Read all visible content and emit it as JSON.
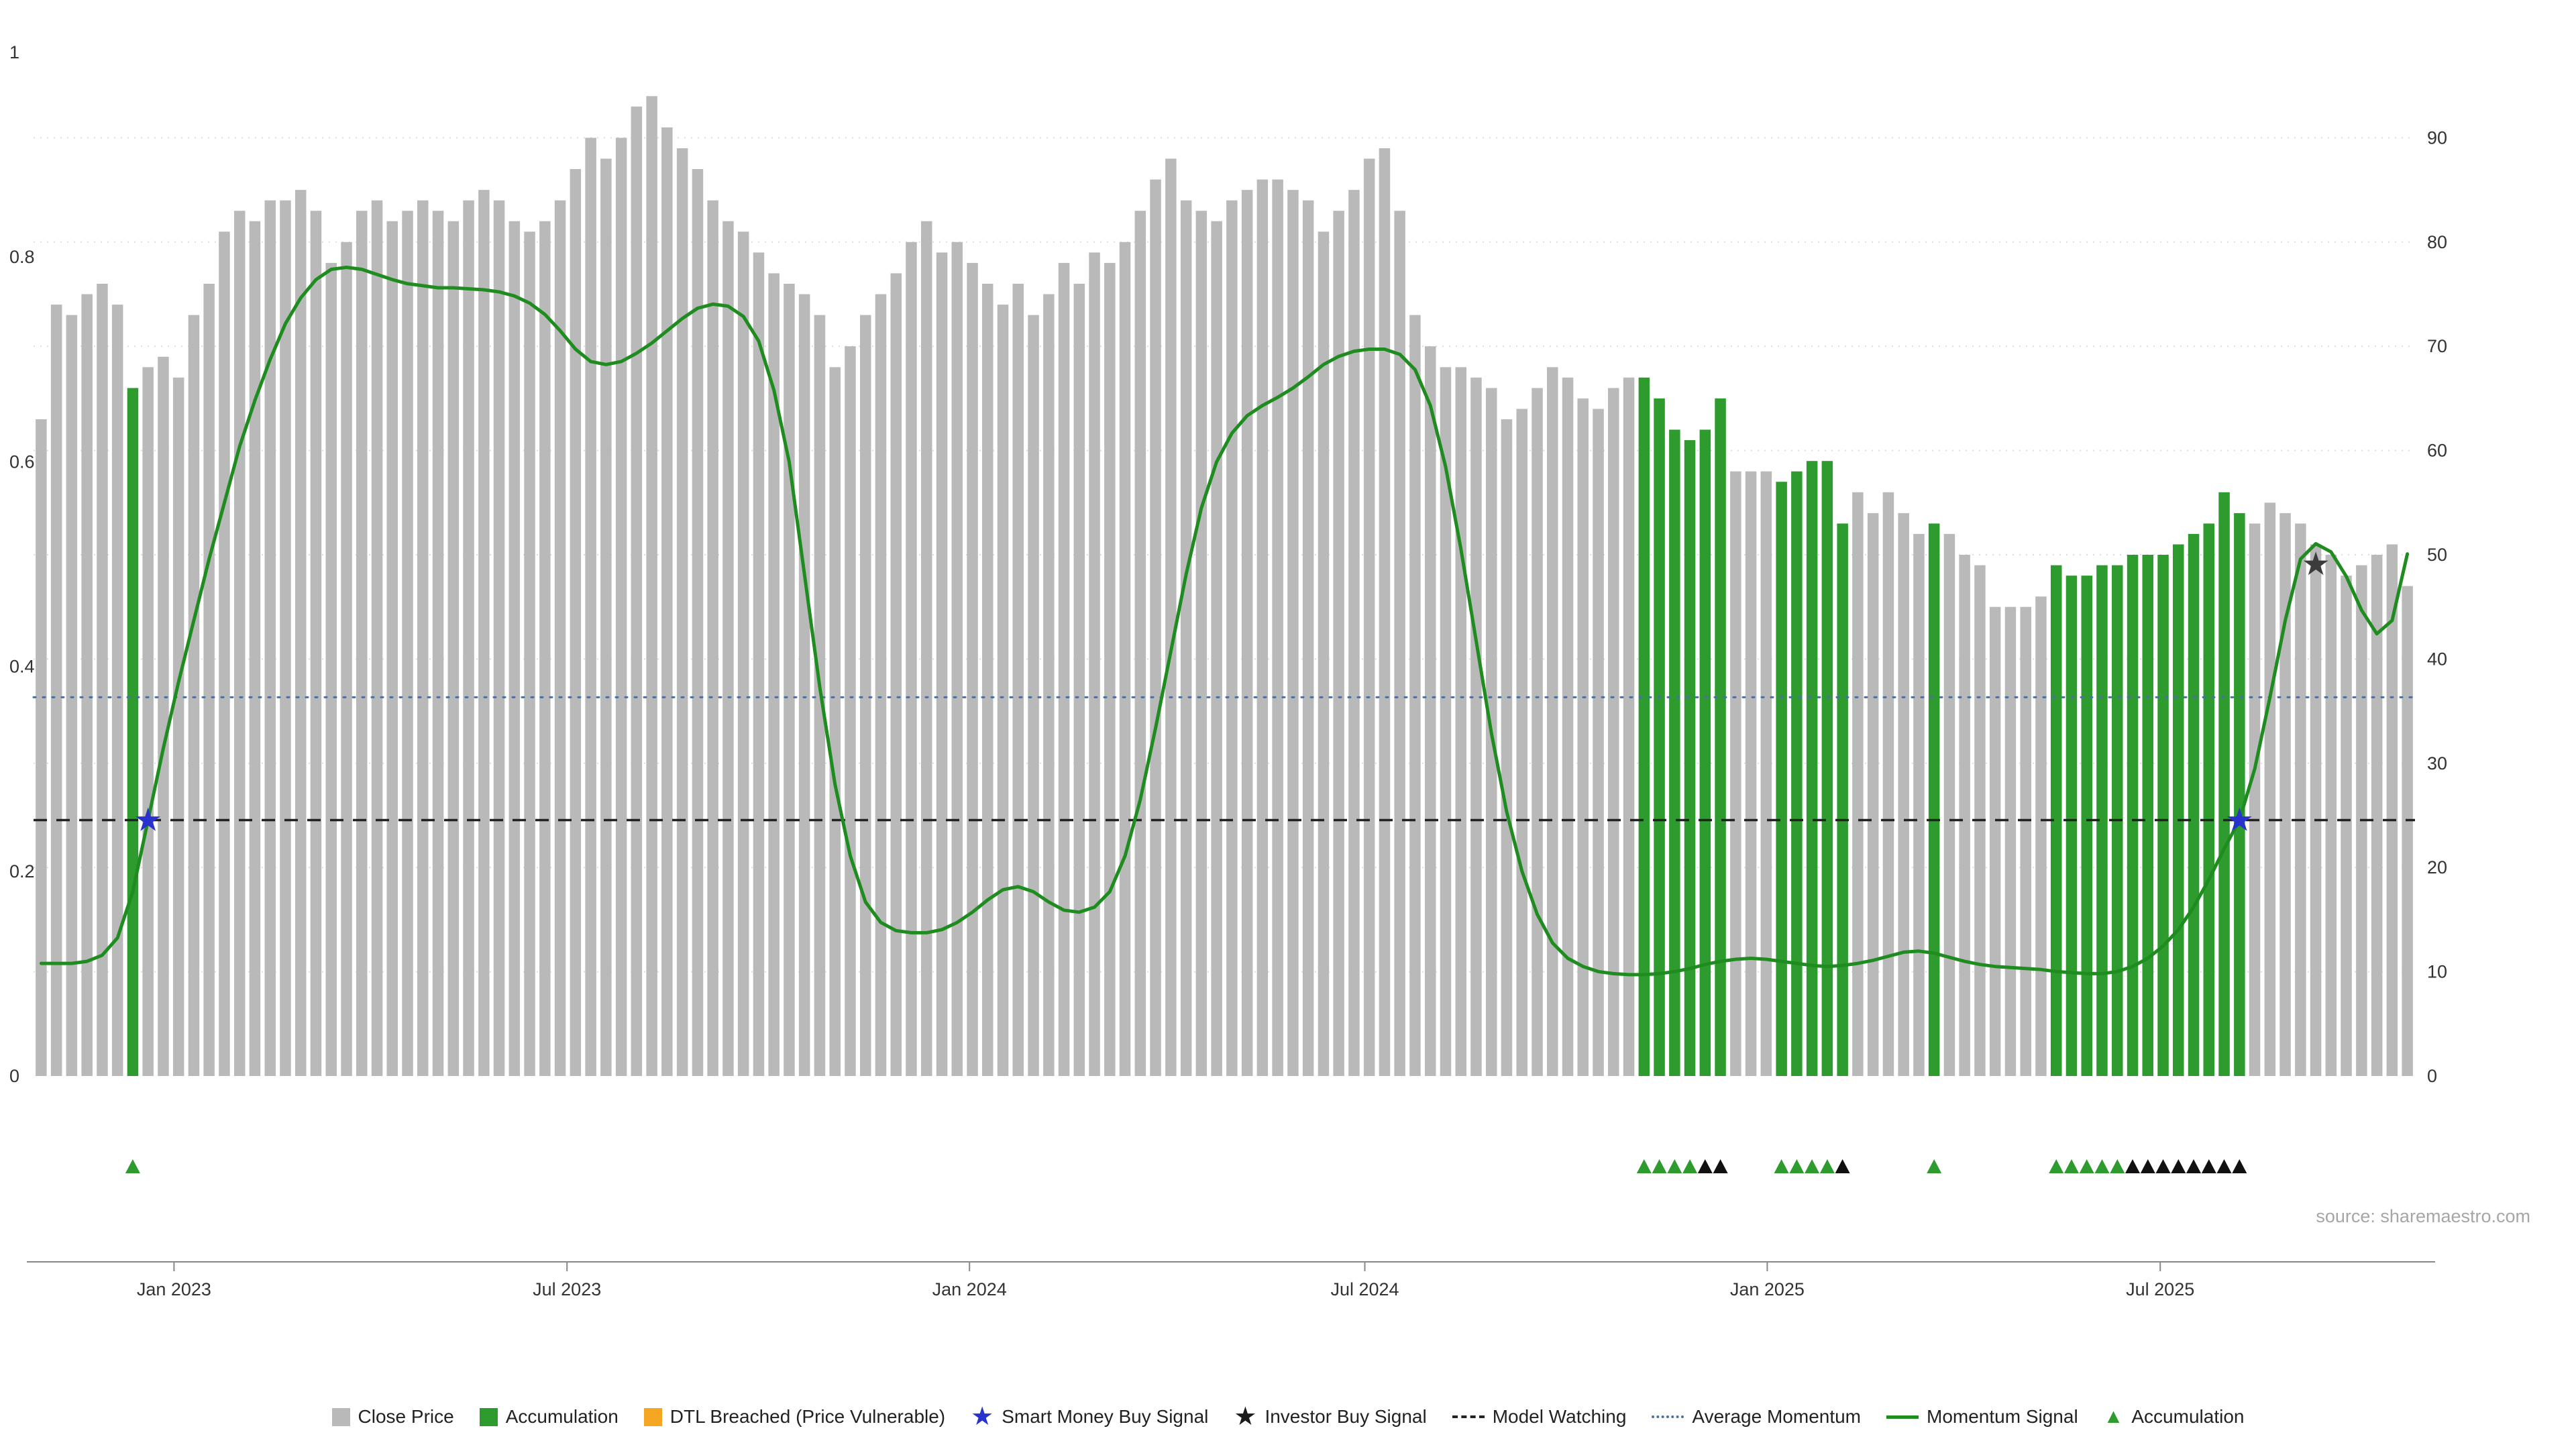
{
  "source": "source: sharemaestro.com",
  "legend": [
    {
      "label": "Close Price",
      "marker": "square",
      "color": "#b9b9b9"
    },
    {
      "label": "Accumulation",
      "marker": "square",
      "color": "#2e9b2e"
    },
    {
      "label": "DTL Breached (Price Vulnerable)",
      "marker": "square",
      "color": "#f5a623"
    },
    {
      "label": "Smart Money Buy Signal",
      "marker": "star",
      "color": "#2733cc"
    },
    {
      "label": "Investor Buy Signal",
      "marker": "star",
      "color": "#1a1a1a"
    },
    {
      "label": "Model Watching",
      "marker": "dashed-line",
      "color": "#222222"
    },
    {
      "label": "Average Momentum",
      "marker": "dotted-line",
      "color": "#4a6fa5"
    },
    {
      "label": "Momentum Signal",
      "marker": "solid-line",
      "color": "#1e8c1e"
    },
    {
      "label": "Accumulation",
      "marker": "triangle",
      "color": "#2e9b2e"
    }
  ],
  "chart_data": {
    "type": "bar+line",
    "title": "",
    "x_ticks": [
      {
        "label": "Jan 2023",
        "f": 0.059
      },
      {
        "label": "Jul 2023",
        "f": 0.224
      },
      {
        "label": "Jan 2024",
        "f": 0.393
      },
      {
        "label": "Jul 2024",
        "f": 0.559
      },
      {
        "label": "Jan 2025",
        "f": 0.728
      },
      {
        "label": "Jul 2025",
        "f": 0.893
      }
    ],
    "left_axis": {
      "range": [
        0,
        1
      ],
      "ticks": [
        {
          "v": 0,
          "label": "0"
        },
        {
          "v": 0.2,
          "label": "0.2"
        },
        {
          "v": 0.4,
          "label": "0.4"
        },
        {
          "v": 0.6,
          "label": "0.6"
        },
        {
          "v": 0.8,
          "label": "0.8"
        },
        {
          "v": 1,
          "label": "1"
        }
      ]
    },
    "right_axis": {
      "ticks": [
        0,
        10,
        20,
        30,
        40,
        50,
        60,
        70,
        80,
        90
      ],
      "scale_max": 98.2
    },
    "bars": {
      "series_name": "Close Price",
      "values": [
        63,
        74,
        73,
        75,
        76,
        74,
        66,
        68,
        69,
        67,
        73,
        76,
        81,
        83,
        82,
        84,
        84,
        85,
        83,
        78,
        80,
        83,
        84,
        82,
        83,
        84,
        83,
        82,
        84,
        85,
        84,
        82,
        81,
        82,
        84,
        87,
        90,
        88,
        90,
        93,
        94,
        91,
        89,
        87,
        84,
        82,
        81,
        79,
        77,
        76,
        75,
        73,
        68,
        70,
        73,
        75,
        77,
        80,
        82,
        79,
        80,
        78,
        76,
        74,
        76,
        73,
        75,
        78,
        76,
        79,
        78,
        80,
        83,
        86,
        88,
        84,
        83,
        82,
        84,
        85,
        86,
        86,
        85,
        84,
        81,
        83,
        85,
        88,
        89,
        83,
        73,
        70,
        68,
        68,
        67,
        66,
        63,
        64,
        66,
        68,
        67,
        65,
        64,
        66,
        67,
        67,
        65,
        62,
        61,
        62,
        65,
        58,
        58,
        58,
        57,
        58,
        59,
        59,
        53,
        56,
        54,
        56,
        54,
        52,
        53,
        52,
        50,
        49,
        45,
        45,
        45,
        46,
        49,
        48,
        48,
        49,
        49,
        50,
        50,
        50,
        51,
        52,
        53,
        56,
        54,
        53,
        55,
        54,
        53,
        51,
        50,
        48,
        49,
        50,
        51,
        47
      ],
      "green_indices": [
        6,
        105,
        106,
        107,
        108,
        109,
        110,
        114,
        115,
        116,
        117,
        118,
        124,
        132,
        133,
        134,
        135,
        136,
        137,
        138,
        139,
        140,
        141,
        142,
        143,
        144
      ]
    },
    "momentum": [
      0.11,
      0.11,
      0.11,
      0.112,
      0.118,
      0.135,
      0.18,
      0.25,
      0.32,
      0.385,
      0.445,
      0.505,
      0.56,
      0.615,
      0.66,
      0.7,
      0.735,
      0.76,
      0.778,
      0.788,
      0.79,
      0.788,
      0.783,
      0.778,
      0.774,
      0.772,
      0.77,
      0.77,
      0.769,
      0.768,
      0.766,
      0.762,
      0.755,
      0.744,
      0.728,
      0.71,
      0.698,
      0.695,
      0.698,
      0.706,
      0.716,
      0.728,
      0.74,
      0.75,
      0.754,
      0.752,
      0.742,
      0.718,
      0.67,
      0.6,
      0.49,
      0.38,
      0.285,
      0.215,
      0.17,
      0.15,
      0.142,
      0.14,
      0.14,
      0.143,
      0.15,
      0.16,
      0.172,
      0.182,
      0.185,
      0.18,
      0.17,
      0.162,
      0.16,
      0.165,
      0.18,
      0.215,
      0.27,
      0.34,
      0.415,
      0.49,
      0.555,
      0.6,
      0.628,
      0.645,
      0.655,
      0.663,
      0.672,
      0.683,
      0.695,
      0.703,
      0.708,
      0.71,
      0.71,
      0.705,
      0.69,
      0.655,
      0.595,
      0.515,
      0.425,
      0.335,
      0.258,
      0.2,
      0.158,
      0.13,
      0.115,
      0.107,
      0.102,
      0.1,
      0.099,
      0.099,
      0.1,
      0.102,
      0.105,
      0.109,
      0.112,
      0.114,
      0.115,
      0.114,
      0.112,
      0.11,
      0.108,
      0.107,
      0.108,
      0.11,
      0.113,
      0.117,
      0.121,
      0.122,
      0.12,
      0.116,
      0.112,
      0.109,
      0.107,
      0.106,
      0.105,
      0.104,
      0.102,
      0.101,
      0.1,
      0.1,
      0.102,
      0.107,
      0.115,
      0.127,
      0.143,
      0.165,
      0.192,
      0.222,
      0.25,
      0.3,
      0.37,
      0.445,
      0.505,
      0.52,
      0.512,
      0.488,
      0.455,
      0.432,
      0.445,
      0.51
    ],
    "model_watching_level": 0.25,
    "average_momentum_level": 0.37,
    "smart_money_signals": [
      {
        "index": 7,
        "level": 0.25
      },
      {
        "index": 144,
        "level": 0.25
      }
    ],
    "investor_signal": {
      "index": 149,
      "level": 0.5
    },
    "accumulation_markers": [
      {
        "index": 6,
        "color": "green"
      },
      {
        "index": 105,
        "color": "green"
      },
      {
        "index": 106,
        "color": "green"
      },
      {
        "index": 107,
        "color": "green"
      },
      {
        "index": 108,
        "color": "green"
      },
      {
        "index": 109,
        "color": "black"
      },
      {
        "index": 110,
        "color": "black"
      },
      {
        "index": 114,
        "color": "green"
      },
      {
        "index": 115,
        "color": "green"
      },
      {
        "index": 116,
        "color": "green"
      },
      {
        "index": 117,
        "color": "green"
      },
      {
        "index": 118,
        "color": "black"
      },
      {
        "index": 124,
        "color": "green"
      },
      {
        "index": 132,
        "color": "green"
      },
      {
        "index": 133,
        "color": "green"
      },
      {
        "index": 134,
        "color": "green"
      },
      {
        "index": 135,
        "color": "green"
      },
      {
        "index": 136,
        "color": "green"
      },
      {
        "index": 137,
        "color": "black"
      },
      {
        "index": 138,
        "color": "black"
      },
      {
        "index": 139,
        "color": "black"
      },
      {
        "index": 140,
        "color": "black"
      },
      {
        "index": 141,
        "color": "black"
      },
      {
        "index": 142,
        "color": "black"
      },
      {
        "index": 143,
        "color": "black"
      },
      {
        "index": 144,
        "color": "black"
      }
    ],
    "colors": {
      "close_price": "#b9b9b9",
      "accumulation": "#2e9b2e",
      "dtl_breached": "#f5a623",
      "momentum": "#1e8c1e",
      "average_momentum": "#4a6fa5",
      "model_watching": "#222222",
      "smart_money": "#2733cc",
      "investor": "#3c3c3c",
      "gridline": "#dedede",
      "triangle_black": "#111111"
    }
  }
}
